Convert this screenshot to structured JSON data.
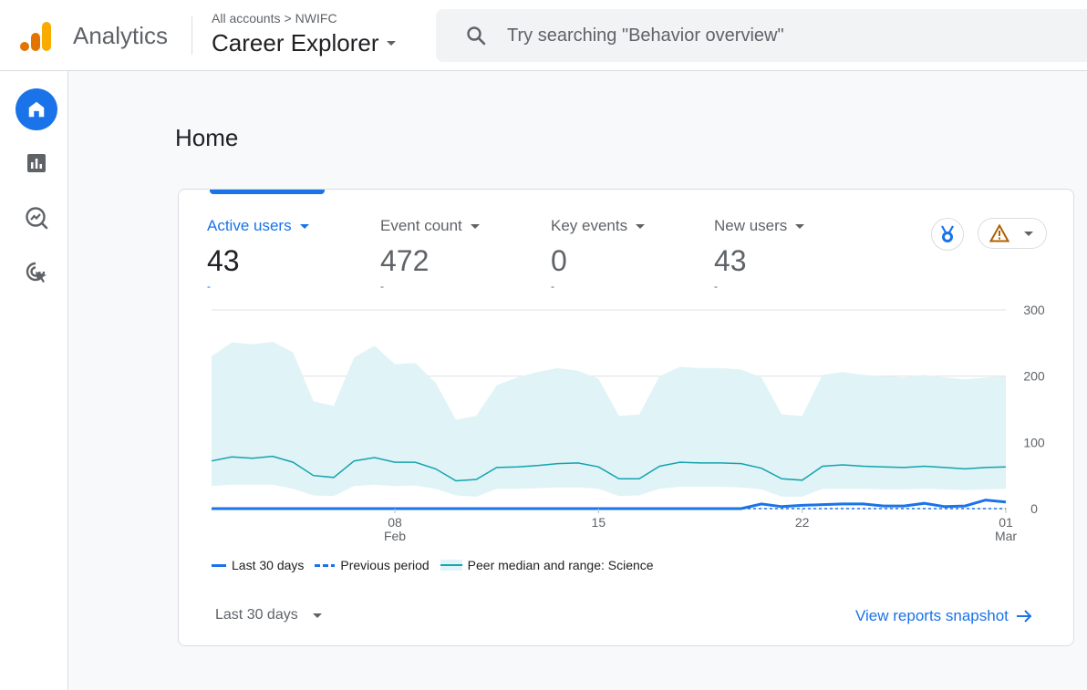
{
  "header": {
    "app_name": "Analytics",
    "breadcrumb": {
      "all_accounts": "All accounts",
      "separator": ">",
      "account": "NWIFC"
    },
    "property": "Career Explorer",
    "search_placeholder": "Try searching \"Behavior overview\""
  },
  "sidebar": {
    "items": [
      {
        "name": "home-icon",
        "active": true
      },
      {
        "name": "reports-icon",
        "active": false
      },
      {
        "name": "explore-icon",
        "active": false
      },
      {
        "name": "advertising-icon",
        "active": false
      }
    ]
  },
  "page": {
    "title": "Home"
  },
  "metrics": [
    {
      "label": "Active users",
      "value": "43",
      "change": "-",
      "active": true
    },
    {
      "label": "Event count",
      "value": "472",
      "change": "-",
      "active": false
    },
    {
      "label": "Key events",
      "value": "0",
      "change": "-",
      "active": false
    },
    {
      "label": "New users",
      "value": "43",
      "change": "-",
      "active": false
    }
  ],
  "colors": {
    "accent": "#1a73e8",
    "band": "#e0f3f6",
    "peer_line": "#12a4af",
    "warning": "#b06000"
  },
  "legend": {
    "last_30": "Last 30 days",
    "previous": "Previous period",
    "peer": "Peer median and range: Science"
  },
  "footer": {
    "date_range": "Last 30 days",
    "snapshot_link": "View reports snapshot"
  },
  "chart_data": {
    "type": "line",
    "y_ticks": [
      "300",
      "200",
      "100",
      "0"
    ],
    "ylim": [
      0,
      300
    ],
    "x_tick_labels": [
      {
        "day": "08",
        "month": "Feb"
      },
      {
        "day": "15",
        "month": ""
      },
      {
        "day": "22",
        "month": ""
      },
      {
        "day": "01",
        "month": "Mar"
      }
    ],
    "x_tick_index": [
      9,
      19,
      29,
      39
    ],
    "series": [
      {
        "name": "Last 30 days",
        "style": "solid",
        "values": [
          0,
          0,
          0,
          0,
          0,
          0,
          0,
          0,
          0,
          0,
          0,
          0,
          0,
          0,
          0,
          0,
          0,
          0,
          0,
          0,
          0,
          0,
          0,
          0,
          0,
          0,
          0,
          7,
          3,
          5,
          6,
          7,
          7,
          4,
          4,
          8,
          3,
          4,
          13,
          10
        ]
      },
      {
        "name": "Previous period",
        "style": "dashed",
        "values": [
          0,
          0,
          0,
          0,
          0,
          0,
          0,
          0,
          0,
          0,
          0,
          0,
          0,
          0,
          0,
          0,
          0,
          0,
          0,
          0,
          0,
          0,
          0,
          0,
          0,
          0,
          0,
          0,
          0,
          0,
          0,
          0,
          0,
          0,
          0,
          0,
          0,
          0,
          0,
          0
        ]
      },
      {
        "name": "Peer median and range: Science",
        "style": "band",
        "median": [
          72,
          78,
          76,
          79,
          70,
          50,
          47,
          72,
          77,
          70,
          70,
          60,
          42,
          44,
          62,
          63,
          65,
          68,
          69,
          63,
          45,
          45,
          64,
          70,
          69,
          69,
          68,
          61,
          45,
          43,
          64,
          66,
          64,
          63,
          62,
          64,
          62,
          60,
          62,
          63
        ],
        "low": [
          34,
          36,
          36,
          36,
          30,
          20,
          19,
          34,
          36,
          34,
          35,
          30,
          20,
          18,
          30,
          30,
          31,
          32,
          32,
          30,
          19,
          20,
          30,
          33,
          33,
          33,
          32,
          29,
          18,
          18,
          30,
          30,
          30,
          29,
          29,
          30,
          29,
          28,
          29,
          30
        ],
        "high": [
          230,
          251,
          248,
          252,
          236,
          162,
          155,
          228,
          246,
          218,
          220,
          190,
          134,
          140,
          186,
          198,
          206,
          212,
          208,
          196,
          140,
          142,
          200,
          214,
          212,
          212,
          210,
          198,
          142,
          140,
          202,
          206,
          202,
          200,
          198,
          202,
          198,
          195,
          198,
          200
        ]
      }
    ]
  }
}
